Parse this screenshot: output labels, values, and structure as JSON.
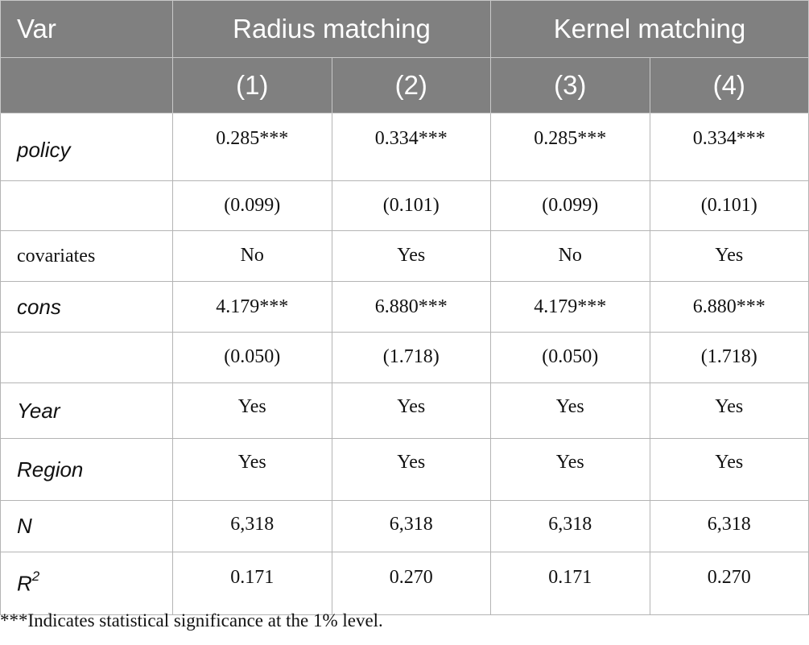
{
  "header": {
    "var_label": "Var",
    "group1": "Radius matching",
    "group2": "Kernel matching",
    "columns": [
      "(1)",
      "(2)",
      "(3)",
      "(4)"
    ]
  },
  "rows": {
    "policy": {
      "label": "policy",
      "values": [
        "0.285***",
        "0.334***",
        "0.285***",
        "0.334***"
      ]
    },
    "policy_se": {
      "label": "",
      "values": [
        "(0.099)",
        "(0.101)",
        "(0.099)",
        "(0.101)"
      ]
    },
    "covariates": {
      "label": "covariates",
      "values": [
        "No",
        "Yes",
        "No",
        "Yes"
      ]
    },
    "cons": {
      "label": "cons",
      "values": [
        "4.179***",
        "6.880***",
        "4.179***",
        "6.880***"
      ]
    },
    "cons_se": {
      "label": "",
      "values": [
        "(0.050)",
        "(1.718)",
        "(0.050)",
        "(1.718)"
      ]
    },
    "year": {
      "label": "Year",
      "values": [
        "Yes",
        "Yes",
        "Yes",
        "Yes"
      ]
    },
    "region": {
      "label": "Region",
      "values": [
        "Yes",
        "Yes",
        "Yes",
        "Yes"
      ]
    },
    "n": {
      "label": "N",
      "values": [
        "6,318",
        "6,318",
        "6,318",
        "6,318"
      ]
    },
    "r2": {
      "label": "R",
      "label_sup": "2",
      "values": [
        "0.171",
        "0.270",
        "0.171",
        "0.270"
      ]
    }
  },
  "footnote": "***Indicates statistical significance at the 1% level."
}
